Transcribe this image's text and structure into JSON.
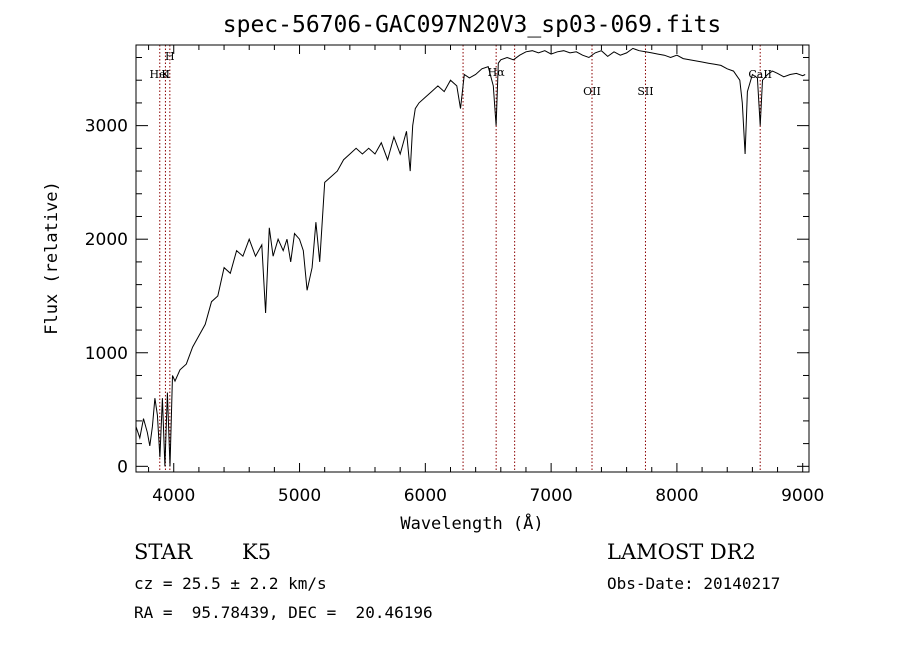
{
  "chart_data": {
    "type": "line",
    "title": "spec-56706-GAC097N20V3_sp03-069.fits",
    "xlabel": "Wavelength (Å)",
    "ylabel": "Flux (relative)",
    "xlim": [
      3700,
      9050
    ],
    "ylim": [
      -50,
      3710
    ],
    "xticks": [
      4000,
      5000,
      6000,
      7000,
      8000,
      9000
    ],
    "yticks": [
      0,
      1000,
      2000,
      3000
    ],
    "grid": false,
    "line_color": "#000000",
    "marker_color": "#8b0000",
    "spectral_lines": [
      {
        "label": "HeI",
        "wavelength": 3889
      },
      {
        "label": "H",
        "wavelength": 3969
      },
      {
        "label": "K",
        "wavelength": 3934
      },
      {
        "label": "",
        "wavelength": 6300
      },
      {
        "label": "Hα",
        "wavelength": 6563
      },
      {
        "label": "",
        "wavelength": 6710
      },
      {
        "label": "OII",
        "wavelength": 7325
      },
      {
        "label": "SII",
        "wavelength": 7750
      },
      {
        "label": "CaII",
        "wavelength": 8662
      }
    ],
    "series": [
      {
        "x": [
          3700,
          3730,
          3760,
          3790,
          3810,
          3830,
          3850,
          3870,
          3890,
          3910,
          3930,
          3950,
          3970,
          3990,
          4010,
          4050,
          4100,
          4150,
          4200,
          4250,
          4300,
          4350,
          4400,
          4450,
          4500,
          4550,
          4600,
          4650,
          4700,
          4730,
          4760,
          4790,
          4830,
          4870,
          4900,
          4930,
          4960,
          5000,
          5030,
          5060,
          5100,
          5130,
          5160,
          5200,
          5250,
          5300,
          5350,
          5400,
          5450,
          5500,
          5550,
          5600,
          5650,
          5700,
          5750,
          5800,
          5850,
          5880,
          5900,
          5920,
          5950,
          6000,
          6050,
          6100,
          6150,
          6200,
          6250,
          6280,
          6310,
          6350,
          6400,
          6450,
          6500,
          6540,
          6563,
          6580,
          6600,
          6650,
          6700,
          6750,
          6800,
          6850,
          6900,
          6950,
          7000,
          7050,
          7100,
          7150,
          7200,
          7250,
          7300,
          7350,
          7400,
          7450,
          7500,
          7550,
          7600,
          7650,
          7700,
          7750,
          7800,
          7850,
          7900,
          7950,
          8000,
          8050,
          8100,
          8150,
          8200,
          8250,
          8300,
          8350,
          8400,
          8450,
          8500,
          8520,
          8542,
          8560,
          8600,
          8640,
          8662,
          8680,
          8720,
          8760,
          8800,
          8850,
          8900,
          8950,
          9000,
          9020
        ],
        "y": [
          350,
          250,
          420,
          300,
          180,
          350,
          600,
          450,
          80,
          600,
          0,
          650,
          0,
          800,
          750,
          850,
          900,
          1050,
          1150,
          1250,
          1450,
          1500,
          1750,
          1700,
          1900,
          1850,
          2000,
          1850,
          1950,
          1350,
          2100,
          1850,
          2000,
          1900,
          2000,
          1800,
          2050,
          2000,
          1900,
          1550,
          1750,
          2150,
          1800,
          2500,
          2550,
          2600,
          2700,
          2750,
          2800,
          2750,
          2800,
          2750,
          2850,
          2700,
          2900,
          2750,
          2950,
          2600,
          3000,
          3150,
          3200,
          3250,
          3300,
          3350,
          3300,
          3400,
          3350,
          3150,
          3450,
          3420,
          3450,
          3500,
          3520,
          3350,
          3000,
          3550,
          3580,
          3600,
          3580,
          3620,
          3650,
          3660,
          3640,
          3660,
          3630,
          3650,
          3660,
          3640,
          3650,
          3620,
          3600,
          3640,
          3660,
          3610,
          3650,
          3620,
          3640,
          3680,
          3660,
          3650,
          3640,
          3630,
          3620,
          3600,
          3620,
          3590,
          3580,
          3570,
          3560,
          3550,
          3540,
          3530,
          3500,
          3480,
          3400,
          3200,
          2750,
          3300,
          3450,
          3420,
          3000,
          3400,
          3450,
          3480,
          3460,
          3430,
          3450,
          3460,
          3440,
          3450
        ]
      }
    ]
  },
  "info": {
    "obj_class": "STAR",
    "subclass": "K5",
    "cz": "cz = 25.5 ± 2.2 km/s",
    "radec": "RA =  95.78439, DEC =  20.46196",
    "survey": "LAMOST DR2",
    "obs_date": "Obs-Date: 20140217"
  }
}
